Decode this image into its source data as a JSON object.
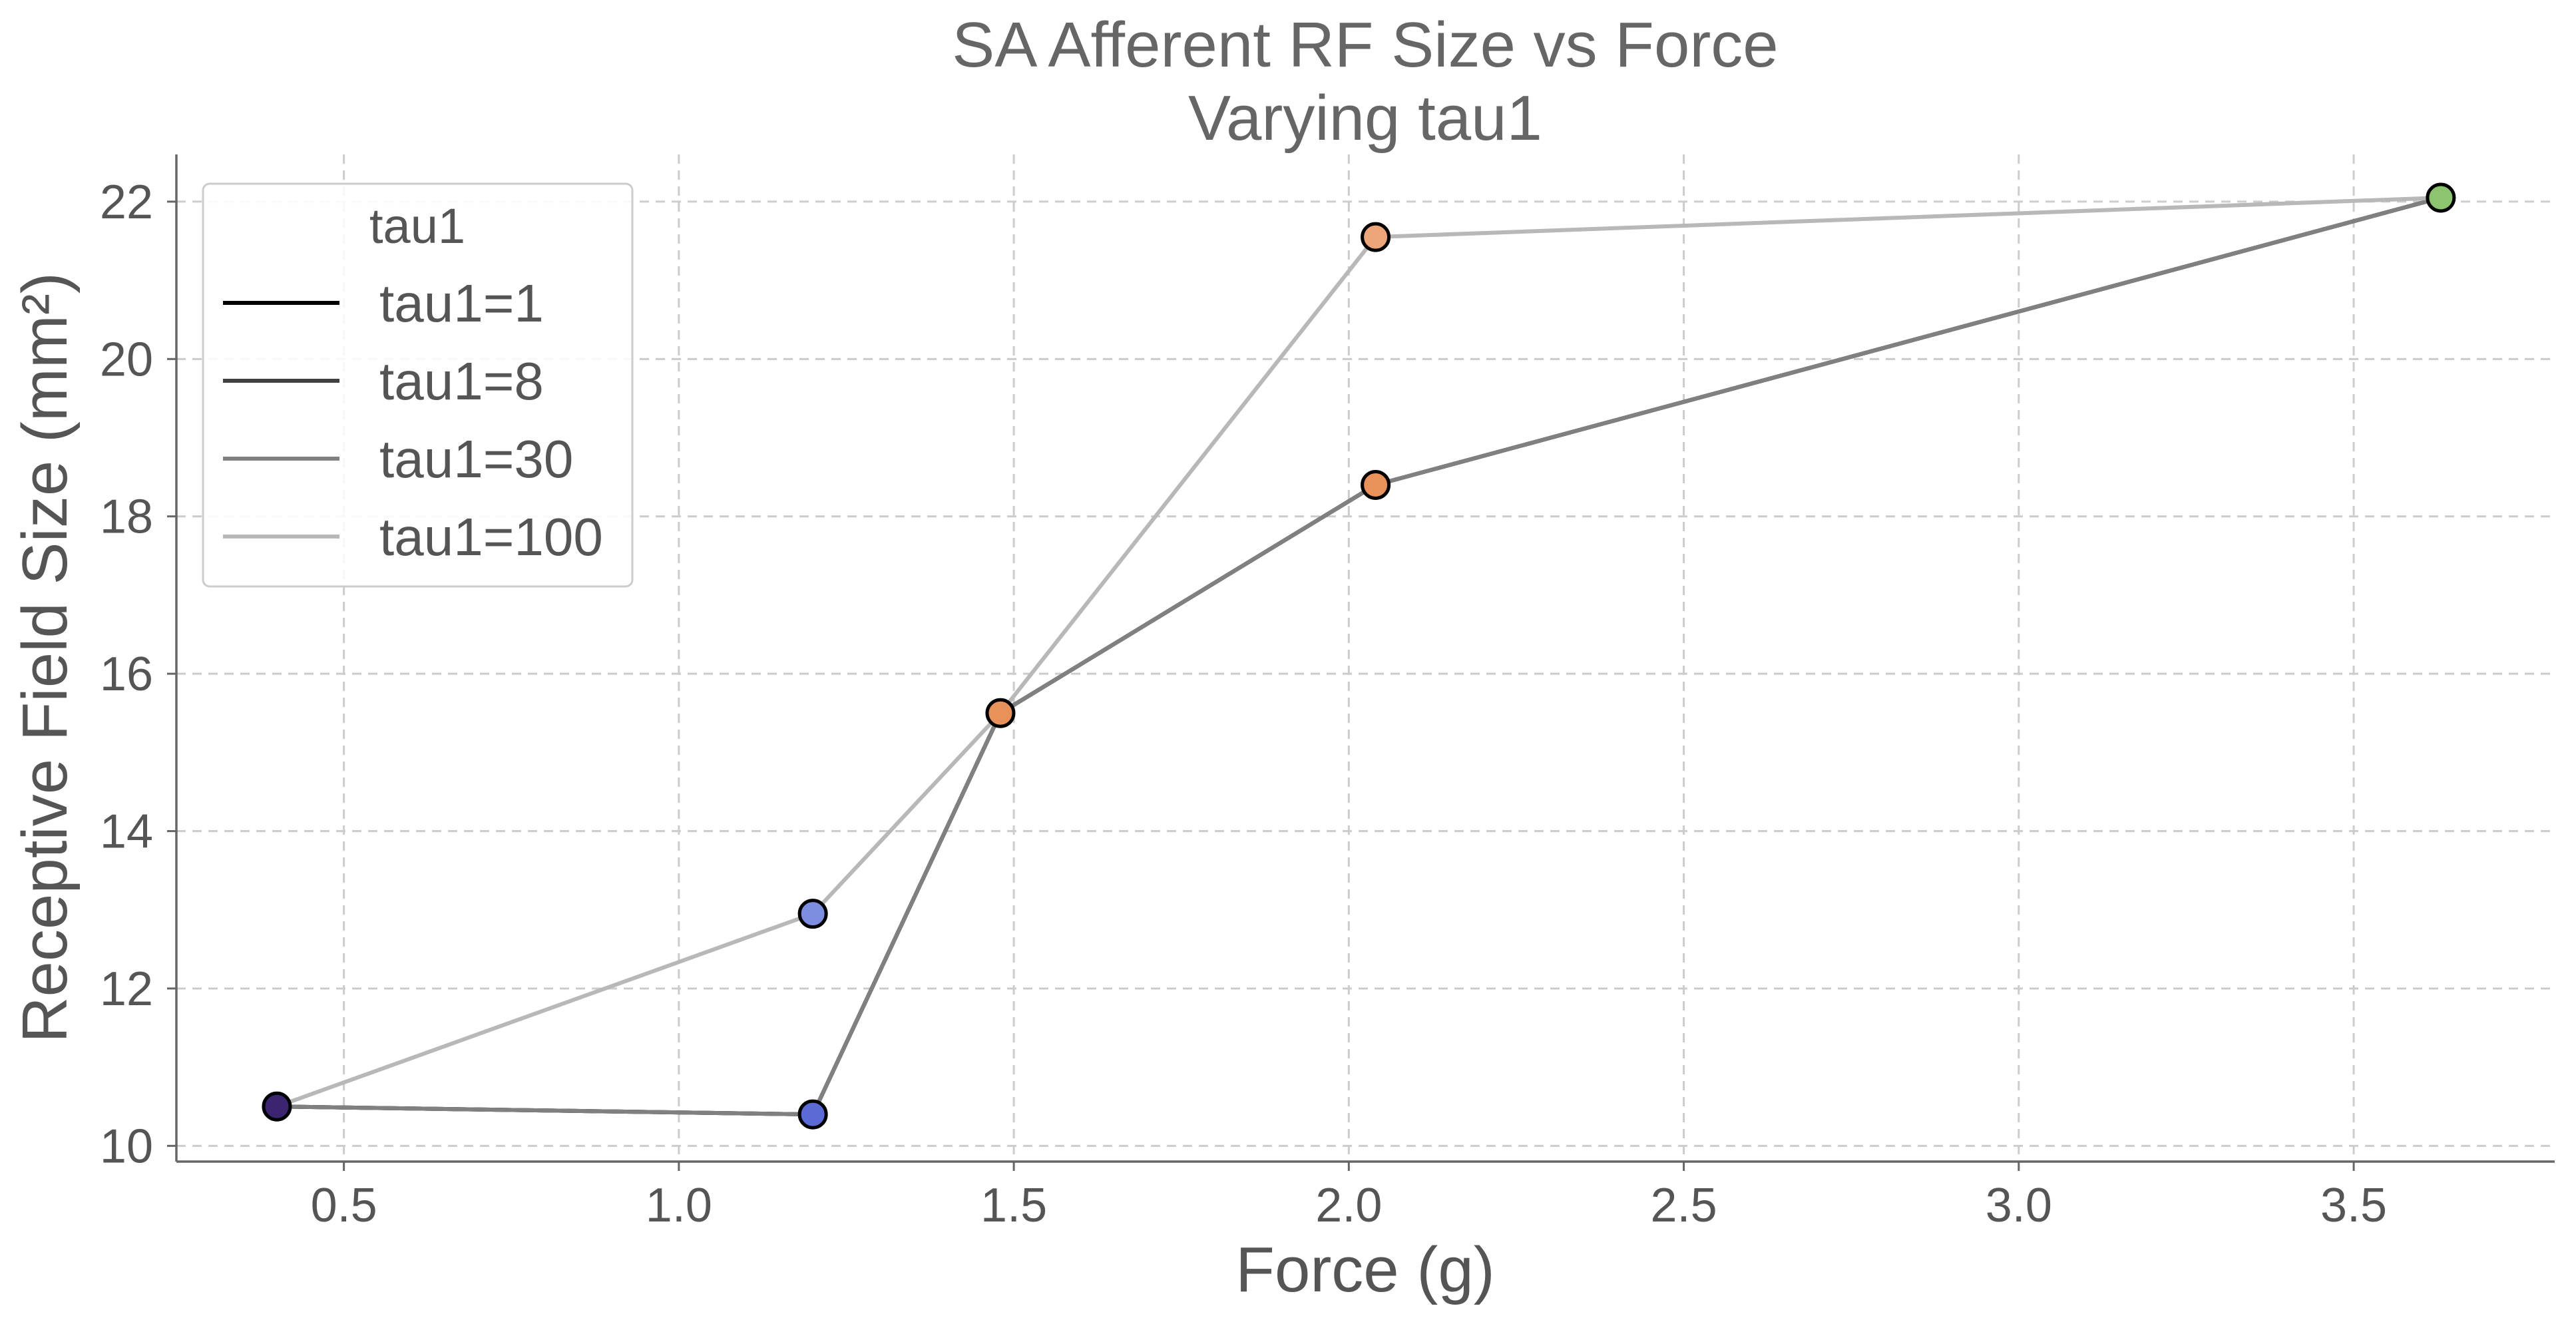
{
  "chart_data": {
    "type": "line",
    "title": "SA Afferent RF Size vs Force",
    "subtitle": "Varying tau1",
    "xlabel": "Force (g)",
    "ylabel": "Receptive Field Size (mm²)",
    "xlim": [
      0.25,
      3.8
    ],
    "ylim": [
      9.8,
      22.6
    ],
    "xticks": [
      0.5,
      1.0,
      1.5,
      2.0,
      2.5,
      3.0,
      3.5
    ],
    "xtick_labels": [
      "0.5",
      "1.0",
      "1.5",
      "2.0",
      "2.5",
      "3.0",
      "3.5"
    ],
    "yticks": [
      10,
      12,
      14,
      16,
      18,
      20,
      22
    ],
    "ytick_labels": [
      "10",
      "12",
      "14",
      "16",
      "18",
      "20",
      "22"
    ],
    "grid": true,
    "legend": {
      "title": "tau1",
      "placement": "top-left"
    },
    "series": [
      {
        "name": "tau1=1",
        "color": "#000000",
        "x": [
          0.4,
          1.2,
          1.48,
          2.04,
          3.63
        ],
        "y": [
          10.5,
          10.4,
          15.5,
          18.4,
          22.05
        ]
      },
      {
        "name": "tau1=8",
        "color": "#404040",
        "x": [
          0.4,
          1.2,
          1.48,
          2.04,
          3.63
        ],
        "y": [
          10.5,
          10.4,
          15.5,
          18.4,
          22.05
        ]
      },
      {
        "name": "tau1=30",
        "color": "#808080",
        "x": [
          0.4,
          1.2,
          1.48,
          2.04,
          3.63
        ],
        "y": [
          10.5,
          10.4,
          15.5,
          18.4,
          22.05
        ]
      },
      {
        "name": "tau1=100",
        "color": "#b8b8b8",
        "x": [
          0.4,
          1.2,
          1.48,
          2.04,
          3.63
        ],
        "y": [
          10.5,
          12.95,
          15.5,
          21.55,
          22.05
        ]
      }
    ],
    "markers": [
      {
        "x": 0.4,
        "y": 10.5,
        "color": "#3b2470"
      },
      {
        "x": 1.2,
        "y": 12.95,
        "color": "#7d8ee0"
      },
      {
        "x": 1.2,
        "y": 10.4,
        "color": "#5a6bd8"
      },
      {
        "x": 1.48,
        "y": 15.5,
        "color": "#e8915a"
      },
      {
        "x": 2.04,
        "y": 21.55,
        "color": "#eda57a"
      },
      {
        "x": 2.04,
        "y": 18.4,
        "color": "#e8915a"
      },
      {
        "x": 3.63,
        "y": 22.05,
        "color": "#8cc470"
      }
    ]
  }
}
